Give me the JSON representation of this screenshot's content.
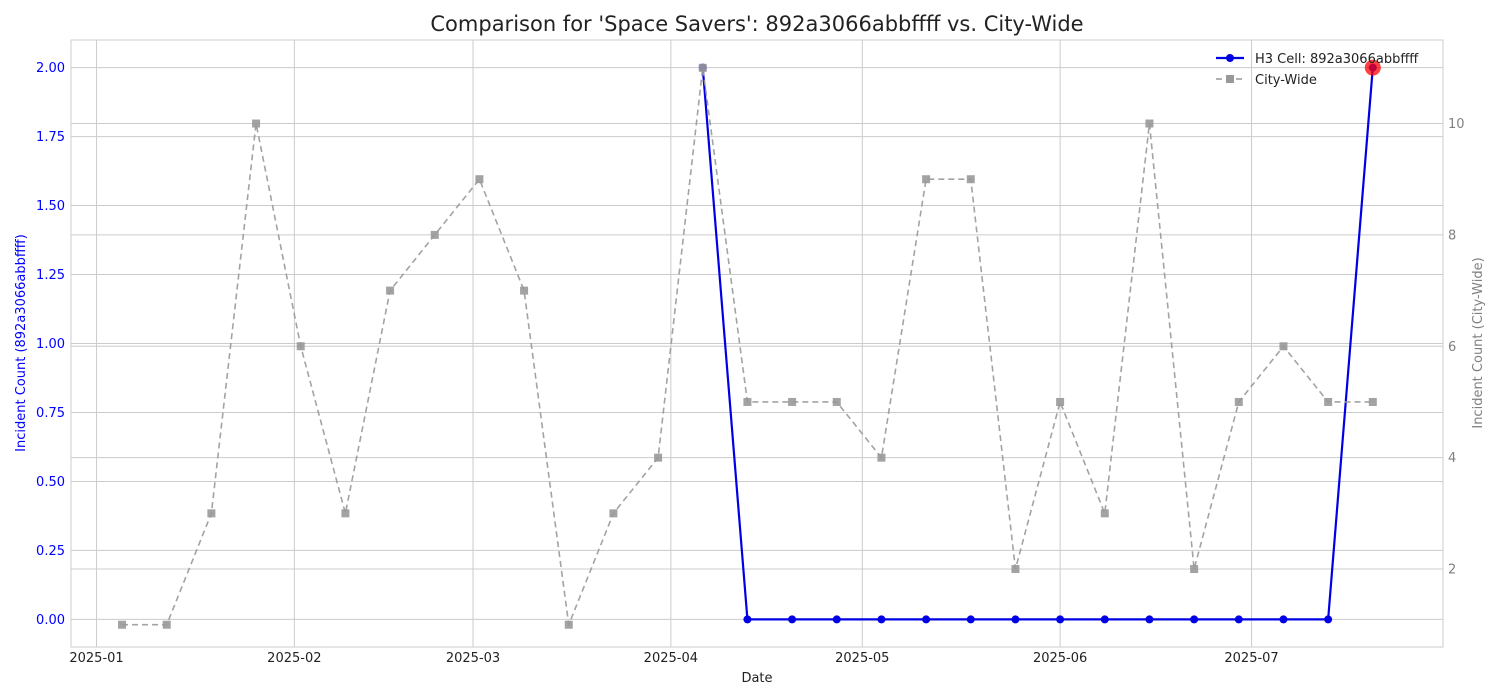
{
  "chart_data": {
    "type": "line",
    "title": "Comparison for 'Space Savers': 892a3066abbffff vs. City-Wide",
    "xlabel": "Date",
    "ylabel_left": "Incident Count (892a3066abbffff)",
    "ylabel_right": "Incident Count (City-Wide)",
    "x_ticks": [
      "2025-01",
      "2025-02",
      "2025-03",
      "2025-04",
      "2025-05",
      "2025-06",
      "2025-07"
    ],
    "y_left_ticks": [
      "0.00",
      "0.25",
      "0.50",
      "0.75",
      "1.00",
      "1.25",
      "1.50",
      "1.75",
      "2.00"
    ],
    "y_right_ticks": [
      "2",
      "4",
      "6",
      "8",
      "10"
    ],
    "ylim_left": [
      -0.1,
      2.1
    ],
    "ylim_right": [
      0.6,
      11.5
    ],
    "xlim": [
      "2024-12-28",
      "2025-07-31"
    ],
    "grid": true,
    "legend_position": "top-right",
    "series": [
      {
        "name": "H3 Cell: 892a3066abbffff",
        "axis": "left",
        "color": "#0000e6",
        "style": "solid",
        "marker": "circle",
        "x": [
          "2025-04-06",
          "2025-04-13",
          "2025-04-20",
          "2025-04-27",
          "2025-05-04",
          "2025-05-11",
          "2025-05-18",
          "2025-05-25",
          "2025-06-01",
          "2025-06-08",
          "2025-06-15",
          "2025-06-22",
          "2025-06-29",
          "2025-07-06",
          "2025-07-13",
          "2025-07-20"
        ],
        "values": [
          2,
          0,
          0,
          0,
          0,
          0,
          0,
          0,
          0,
          0,
          0,
          0,
          0,
          0,
          0,
          2
        ]
      },
      {
        "name": "City-Wide",
        "axis": "right",
        "color": "#999999",
        "style": "dashed",
        "marker": "square",
        "x": [
          "2025-01-05",
          "2025-01-12",
          "2025-01-19",
          "2025-01-26",
          "2025-02-02",
          "2025-02-09",
          "2025-02-16",
          "2025-02-23",
          "2025-03-02",
          "2025-03-09",
          "2025-03-16",
          "2025-03-23",
          "2025-03-30",
          "2025-04-06",
          "2025-04-13",
          "2025-04-20",
          "2025-04-27",
          "2025-05-04",
          "2025-05-11",
          "2025-05-18",
          "2025-05-25",
          "2025-06-01",
          "2025-06-08",
          "2025-06-15",
          "2025-06-22",
          "2025-06-29",
          "2025-07-06",
          "2025-07-13",
          "2025-07-20"
        ],
        "values": [
          1,
          1,
          3,
          10,
          6,
          3,
          7,
          8,
          9,
          7,
          1,
          3,
          4,
          11,
          5,
          5,
          5,
          4,
          9,
          9,
          2,
          5,
          3,
          10,
          2,
          5,
          6,
          5,
          5
        ]
      }
    ],
    "highlight": {
      "series": "H3 Cell: 892a3066abbffff",
      "x": "2025-07-20",
      "value": 2,
      "color": "#ff0000"
    }
  }
}
